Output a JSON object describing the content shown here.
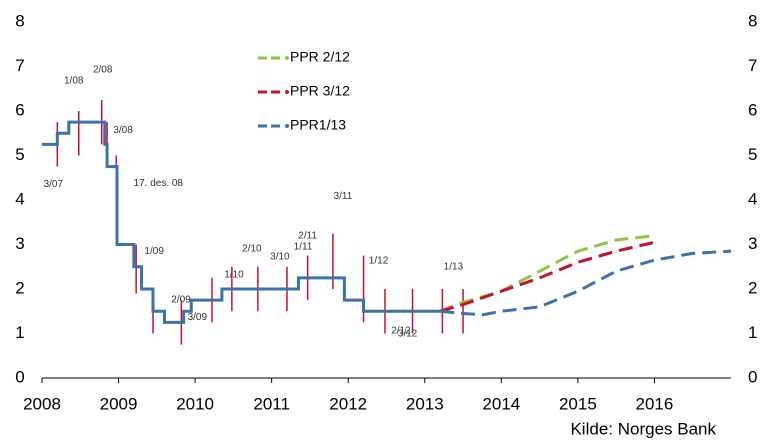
{
  "chart_data": {
    "type": "line",
    "xlim": [
      2008,
      2017
    ],
    "xticks": [
      2008,
      2009,
      2010,
      2011,
      2012,
      2013,
      2014,
      2015,
      2016
    ],
    "ylim": [
      0,
      8
    ],
    "yticks": [
      0,
      1,
      2,
      3,
      4,
      5,
      6,
      7,
      8
    ],
    "y2lim": [
      0,
      8
    ],
    "y2ticks": [
      0,
      1,
      2,
      3,
      4,
      5,
      6,
      7,
      8
    ],
    "grid": false,
    "legend": "top",
    "source": "Kilde: Norges Bank",
    "series": [
      {
        "color": "#3a73a8",
        "style": "solid",
        "x": [
          2008,
          2008.2,
          2008.2,
          2008.35,
          2008.35,
          2008.82,
          2008.82,
          2008.85,
          2008.85,
          2008.98,
          2008.98,
          2009.2,
          2009.2,
          2009.3,
          2009.3,
          2009.45,
          2009.45,
          2009.6,
          2009.6,
          2009.85,
          2009.85,
          2009.95,
          2009.95,
          2010.35,
          2010.35,
          2011.35,
          2011.35,
          2011.95,
          2011.95,
          2012.2,
          2012.2,
          2013.2
        ],
        "values": [
          5.25,
          5.25,
          5.5,
          5.5,
          5.75,
          5.75,
          5.25,
          5.25,
          4.75,
          4.75,
          3.0,
          3.0,
          2.5,
          2.5,
          2.0,
          2.0,
          1.5,
          1.5,
          1.25,
          1.25,
          1.5,
          1.5,
          1.75,
          1.75,
          2.0,
          2.0,
          2.25,
          2.25,
          1.75,
          1.75,
          1.5,
          1.5
        ]
      },
      {
        "name": "PPR 2/12",
        "color": "#8dc63f",
        "style": "dashed",
        "x": [
          2013.2,
          2013.5,
          2014,
          2014.5,
          2015,
          2015.5,
          2016
        ],
        "values": [
          1.5,
          1.7,
          1.95,
          2.4,
          2.85,
          3.1,
          3.2
        ]
      },
      {
        "name": "PPR 3/12",
        "color": "#c8102e",
        "style": "dashed",
        "x": [
          2013.2,
          2013.5,
          2014,
          2014.5,
          2015,
          2015.5,
          2016
        ],
        "values": [
          1.5,
          1.65,
          1.95,
          2.25,
          2.6,
          2.85,
          3.05
        ]
      },
      {
        "name": "PPR1/13",
        "color": "#3a73a8",
        "style": "dashed",
        "x": [
          2013.2,
          2013.5,
          2013.75,
          2014,
          2014.5,
          2015,
          2015.5,
          2016,
          2016.5,
          2017
        ],
        "values": [
          1.5,
          1.45,
          1.42,
          1.5,
          1.6,
          1.95,
          2.4,
          2.65,
          2.8,
          2.85
        ]
      }
    ],
    "ranges": [
      {
        "x": 2008.2,
        "low": 4.75,
        "high": 5.75,
        "label": "3/07"
      },
      {
        "x": 2008.48,
        "low": 5.0,
        "high": 6.0,
        "label": "1/08"
      },
      {
        "x": 2008.78,
        "low": 5.25,
        "high": 6.25,
        "label": "2/08"
      },
      {
        "x": 2008.85,
        "low": 4.75,
        "high": 5.75,
        "label": "3/08"
      },
      {
        "x": 2008.97,
        "low": 4.0,
        "high": 5.0,
        "label": "17. des. 08"
      },
      {
        "x": 2009.23,
        "low": 1.9,
        "high": 3.0,
        "label": "1/09"
      },
      {
        "x": 2009.45,
        "low": 1.0,
        "high": 2.0,
        "label": "2/09"
      },
      {
        "x": 2009.82,
        "low": 0.75,
        "high": 1.75,
        "label": "3/09"
      },
      {
        "x": 2010.22,
        "low": 1.25,
        "high": 2.25,
        "label": "1/10"
      },
      {
        "x": 2010.48,
        "low": 1.5,
        "high": 2.5,
        "label": "2/10"
      },
      {
        "x": 2010.82,
        "low": 1.5,
        "high": 2.5,
        "label": "3/10"
      },
      {
        "x": 2011.2,
        "low": 1.5,
        "high": 2.5,
        "label": "1/11"
      },
      {
        "x": 2011.47,
        "low": 1.75,
        "high": 2.75,
        "label": "2/11"
      },
      {
        "x": 2011.8,
        "low": 2.0,
        "high": 3.25,
        "label": "3/11"
      },
      {
        "x": 2012.2,
        "low": 1.25,
        "high": 2.75,
        "label": "1/12"
      },
      {
        "x": 2012.48,
        "low": 1.0,
        "high": 2.0,
        "label": "2/12"
      },
      {
        "x": 2012.84,
        "low": 1.0,
        "high": 2.0,
        "label": "3/12"
      },
      {
        "x": 2013.23,
        "low": 1.0,
        "high": 2.0,
        "label": "1/13"
      },
      {
        "x": 2013.5,
        "low": 1.0,
        "high": 2.0
      }
    ]
  }
}
